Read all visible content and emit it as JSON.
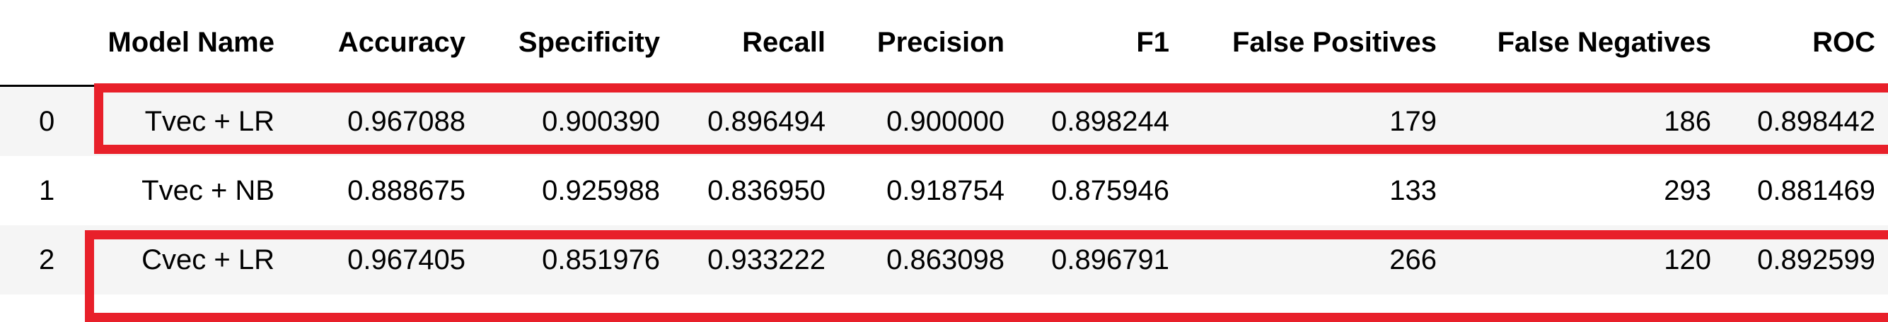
{
  "table": {
    "headers": {
      "index": "",
      "model_name": "Model Name",
      "accuracy": "Accuracy",
      "specificity": "Specificity",
      "recall": "Recall",
      "precision": "Precision",
      "f1": "F1",
      "false_positives": "False Positives",
      "false_negatives": "False Negatives",
      "roc": "ROC"
    },
    "rows": [
      {
        "index": "0",
        "model_name": "Tvec + LR",
        "accuracy": "0.967088",
        "specificity": "0.900390",
        "recall": "0.896494",
        "precision": "0.900000",
        "f1": "0.898244",
        "false_positives": "179",
        "false_negatives": "186",
        "roc": "0.898442"
      },
      {
        "index": "1",
        "model_name": "Tvec + NB",
        "accuracy": "0.888675",
        "specificity": "0.925988",
        "recall": "0.836950",
        "precision": "0.918754",
        "f1": "0.875946",
        "false_positives": "133",
        "false_negatives": "293",
        "roc": "0.881469"
      },
      {
        "index": "2",
        "model_name": "Cvec + LR",
        "accuracy": "0.967405",
        "specificity": "0.851976",
        "recall": "0.933222",
        "precision": "0.863098",
        "f1": "0.896791",
        "false_positives": "266",
        "false_negatives": "120",
        "roc": "0.892599"
      }
    ]
  },
  "highlights": {
    "color": "#e8202a",
    "rows": [
      "0",
      "2"
    ]
  },
  "colors": {
    "row_stripe": "#f5f5f5",
    "header_rule": "#000000"
  }
}
